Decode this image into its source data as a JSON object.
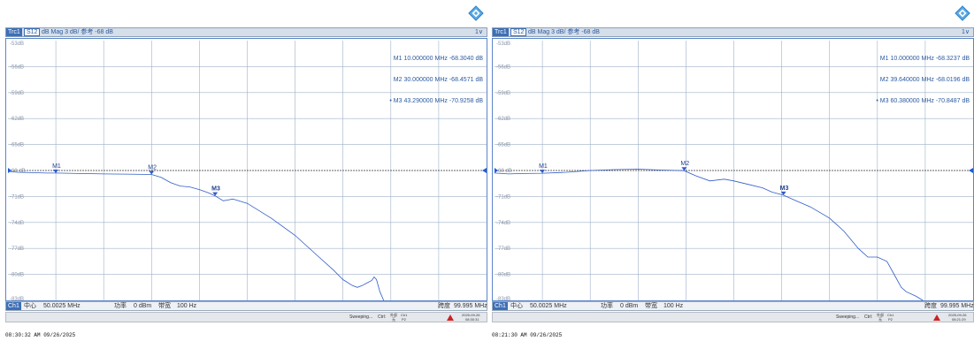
{
  "colors": {
    "trace": "#2f5bc7",
    "grid": "#9fb1c8",
    "accent": "#3d6fb6",
    "ref_arrow": "#1f5cd6",
    "status_icon": "#cc2222"
  },
  "panels": [
    {
      "trace_bar": {
        "trc": "Trc1",
        "param": "S12",
        "desc": "dB Mag  3 dB/ 参考 -68 dB",
        "menu": "1∨"
      },
      "markers": [
        {
          "name": "M1",
          "freq": "10.000000",
          "unit": "MHz",
          "value": "-68.3040",
          "vunit": "dB",
          "active": false
        },
        {
          "name": "M2",
          "freq": "30.000000",
          "unit": "MHz",
          "value": "-68.4571",
          "vunit": "dB",
          "active": false
        },
        {
          "name": "M3",
          "freq": "43.290000",
          "unit": "MHz",
          "value": "-70.9258",
          "vunit": "dB",
          "active": true
        }
      ],
      "y_labels": [
        "-53dB",
        "-56dB",
        "-59dB",
        "-62dB",
        "-65dB",
        "-68 dB",
        "-71dB",
        "-74dB",
        "-77dB",
        "-80dB",
        "-83dB"
      ],
      "ch": "Ch1",
      "center_label": "中心",
      "center": "50.0025 MHz",
      "power_label": "功率",
      "power": "0 dBm",
      "bw_label": "带宽",
      "bw": "100 Hz",
      "span_label": "跨度",
      "span": "99.995 MHz",
      "status": {
        "sweep": "Sweeping...",
        "ctrl": "Ctrl:",
        "ext_top": "外部",
        "ext_bot": "无",
        "ch_top": "Ch1",
        "ch_bot": "P2",
        "date_top": "2025-09-26",
        "date_bot": "08:30:31"
      },
      "timestamp": "08:30:32 AM  09/26/2025",
      "chart_data": {
        "type": "line",
        "x_unit": "MHz",
        "y_unit": "dB",
        "xlim": [
          0.005,
          100.0
        ],
        "ylim": [
          -83,
          -53
        ],
        "x": [
          0.005,
          2,
          5,
          8,
          10,
          15,
          20,
          25,
          30,
          32,
          34,
          36,
          38,
          40,
          42,
          43.29,
          45,
          47,
          50,
          55,
          60,
          65,
          68,
          70,
          72,
          73,
          74,
          75,
          76,
          76.5,
          77,
          77.7,
          78.5
        ],
        "y": [
          -68.1,
          -68.2,
          -68.25,
          -68.3,
          -68.3,
          -68.35,
          -68.4,
          -68.42,
          -68.46,
          -68.8,
          -69.4,
          -69.8,
          -69.9,
          -70.2,
          -70.6,
          -70.93,
          -71.5,
          -71.3,
          -71.8,
          -73.5,
          -75.5,
          -78.0,
          -79.5,
          -80.6,
          -81.3,
          -81.5,
          -81.3,
          -81.0,
          -80.7,
          -80.3,
          -80.6,
          -82.0,
          -83.0
        ],
        "markers": [
          {
            "name": "M1",
            "x": 10.0,
            "y": -68.304
          },
          {
            "name": "M2",
            "x": 30.0,
            "y": -68.4571
          },
          {
            "name": "M3",
            "x": 43.29,
            "y": -70.9258
          }
        ],
        "reference": -68
      }
    },
    {
      "trace_bar": {
        "trc": "Trc1",
        "param": "S12",
        "desc": "dB Mag  3 dB/ 参考 -68 dB",
        "menu": "1∨"
      },
      "markers": [
        {
          "name": "M1",
          "freq": "10.000000",
          "unit": "MHz",
          "value": "-68.3237",
          "vunit": "dB",
          "active": false
        },
        {
          "name": "M2",
          "freq": "39.640000",
          "unit": "MHz",
          "value": "-68.0196",
          "vunit": "dB",
          "active": false
        },
        {
          "name": "M3",
          "freq": "60.380000",
          "unit": "MHz",
          "value": "-70.8487",
          "vunit": "dB",
          "active": true
        }
      ],
      "y_labels": [
        "-53dB",
        "-56dB",
        "-59dB",
        "-62dB",
        "-65dB",
        "-68 dB",
        "-71dB",
        "-74dB",
        "-77dB",
        "-80dB",
        "-83dB"
      ],
      "ch": "Ch1",
      "center_label": "中心",
      "center": "50.0025 MHz",
      "power_label": "功率",
      "power": "0 dBm",
      "bw_label": "带宽",
      "bw": "100 Hz",
      "span_label": "跨度",
      "span": "99.995 MHz",
      "status": {
        "sweep": "Sweeping...",
        "ctrl": "Ctrl:",
        "ext_top": "外部",
        "ext_bot": "无",
        "ch_top": "Ch1",
        "ch_bot": "P2",
        "date_top": "2025-09-26",
        "date_bot": "08:21:29"
      },
      "timestamp": "08:21:30 AM  09/26/2025",
      "chart_data": {
        "type": "line",
        "x_unit": "MHz",
        "y_unit": "dB",
        "xlim": [
          0.005,
          100.0
        ],
        "ylim": [
          -83,
          -53
        ],
        "x": [
          0.005,
          3,
          6,
          10,
          15,
          20,
          25,
          30,
          35,
          39.64,
          42,
          45,
          48,
          50,
          53,
          56,
          58,
          60.38,
          63,
          66,
          70,
          73,
          76,
          78,
          80,
          82,
          84,
          85,
          86,
          88,
          89.5
        ],
        "y": [
          -68.3,
          -68.4,
          -68.35,
          -68.32,
          -68.2,
          -68.0,
          -67.9,
          -67.85,
          -67.95,
          -68.02,
          -68.6,
          -69.2,
          -69.0,
          -69.2,
          -69.6,
          -70.0,
          -70.5,
          -70.85,
          -71.5,
          -72.2,
          -73.5,
          -75.0,
          -77.0,
          -78.0,
          -78.0,
          -78.5,
          -80.5,
          -81.5,
          -82.0,
          -82.5,
          -83.0
        ],
        "markers": [
          {
            "name": "M1",
            "x": 10.0,
            "y": -68.3237
          },
          {
            "name": "M2",
            "x": 39.64,
            "y": -68.0196
          },
          {
            "name": "M3",
            "x": 60.38,
            "y": -70.8487
          }
        ],
        "reference": -68
      }
    }
  ]
}
